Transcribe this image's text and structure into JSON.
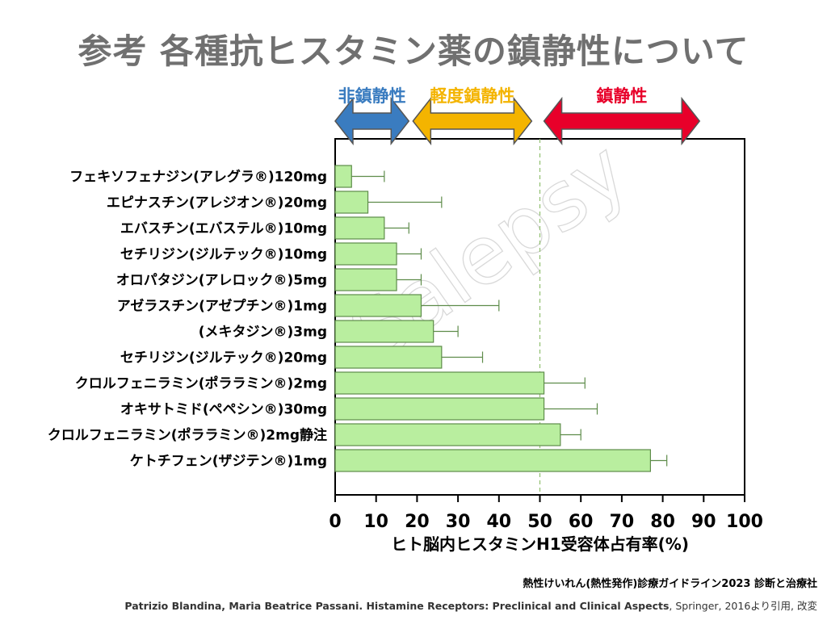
{
  "title": "参考 各種抗ヒスタミン薬の鎮静性について",
  "zones": [
    {
      "label": "非鎮静性",
      "color": "#3a7cc0",
      "start": 0,
      "end": 18
    },
    {
      "label": "軽度鎮静性",
      "color": "#f4b400",
      "start": 19,
      "end": 48
    },
    {
      "label": "鎮静性",
      "color": "#e8002a",
      "start": 51,
      "end": 89
    }
  ],
  "watermark": "Salepsy",
  "chart_data": {
    "type": "bar",
    "orientation": "horizontal",
    "categories": [
      "フェキソフェナジン(アレグラ®)120mg",
      "エピナスチン(アレジオン®)20mg",
      "エバスチン(エバステル®)10mg",
      "セチリジン(ジルテック®)10mg",
      "オロパタジン(アレロック®)5mg",
      "アゼラスチン(アゼプチン®)1mg",
      "(メキタジン®)3mg",
      "セチリジン(ジルテック®)20mg",
      "クロルフェニラミン(ポララミン®)2mg",
      "オキサトミド(ペペシン®)30mg",
      "クロルフェニラミン(ポララミン®)2mg静注",
      "ケトチフェン(ザジテン®)1mg"
    ],
    "values": [
      4,
      8,
      12,
      15,
      15,
      21,
      24,
      26,
      51,
      51,
      55,
      77
    ],
    "errors": [
      8,
      18,
      6,
      6,
      6,
      19,
      6,
      10,
      10,
      13,
      5,
      4
    ],
    "xlabel": "ヒト脳内ヒスタミンH1受容体占有率(%)",
    "xlim": [
      0,
      100
    ],
    "xticks": [
      0,
      10,
      20,
      30,
      40,
      50,
      60,
      70,
      80,
      90,
      100
    ],
    "reference_line": 50,
    "bar_color": "#b9ee9f",
    "bar_stroke": "#5e8c4a"
  },
  "footer": {
    "guideline": "熱性けいれん(熱性発作)診療ガイドライン2023 診断と治療社",
    "authors": "Patrizio Blandina, Maria Beatrice Passani. Histamine Receptors: Preclinical and Clinical Aspects",
    "publisher": ", Springer, 2016より引用, 改変"
  }
}
